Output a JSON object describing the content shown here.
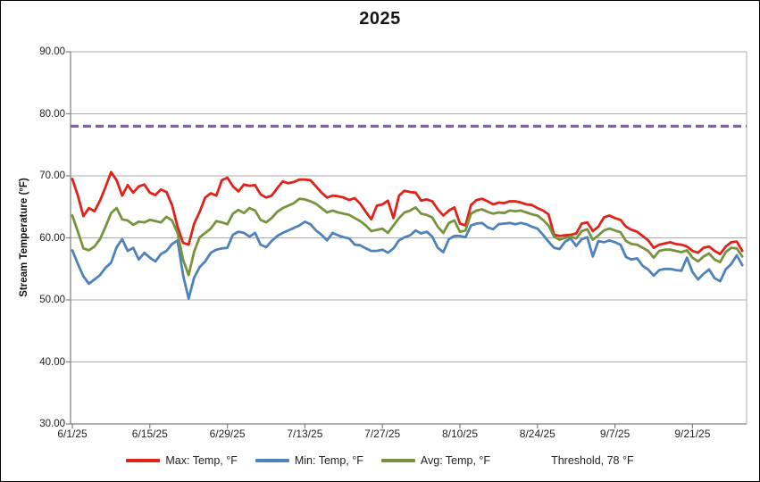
{
  "title": "2025",
  "y_axis": {
    "title": "Stream Temperature (°F)",
    "tick_labels": [
      "90.00",
      "80.00",
      "70.00",
      "60.00",
      "50.00",
      "40.00",
      "30.00"
    ]
  },
  "x_axis": {
    "ticks": [
      {
        "label": "6/1/25",
        "index": 0
      },
      {
        "label": "6/15/25",
        "index": 14
      },
      {
        "label": "6/29/25",
        "index": 28
      },
      {
        "label": "7/13/25",
        "index": 42
      },
      {
        "label": "7/27/25",
        "index": 56
      },
      {
        "label": "8/10/25",
        "index": 70
      },
      {
        "label": "8/24/25",
        "index": 84
      },
      {
        "label": "9/7/25",
        "index": 98
      },
      {
        "label": "9/21/25",
        "index": 112
      }
    ]
  },
  "legend": {
    "items": [
      {
        "label": "Max: Temp, °F",
        "color": "#E0231A",
        "dashed": false
      },
      {
        "label": "Min: Temp, °F",
        "color": "#4F81BD",
        "dashed": false
      },
      {
        "label": "Avg: Temp, °F",
        "color": "#77933C",
        "dashed": false
      },
      {
        "label": "Threshold, 78 °F",
        "color": "#8064A2",
        "dashed": true
      }
    ]
  },
  "colors": {
    "gridline": "#ABABAB",
    "axis": "#7F7F7F",
    "plot_border": "#ABABAB",
    "text": "#1F1F1F"
  },
  "chart_data": {
    "type": "line",
    "title": "2025",
    "xlabel": "",
    "ylabel": "Stream Temperature (°F)",
    "ylim": [
      30,
      90
    ],
    "grid": true,
    "legend_position": "bottom",
    "x": [
      "6/1/25",
      "6/2/25",
      "6/3/25",
      "6/4/25",
      "6/5/25",
      "6/6/25",
      "6/7/25",
      "6/8/25",
      "6/9/25",
      "6/10/25",
      "6/11/25",
      "6/12/25",
      "6/13/25",
      "6/14/25",
      "6/15/25",
      "6/16/25",
      "6/17/25",
      "6/18/25",
      "6/19/25",
      "6/20/25",
      "6/21/25",
      "6/22/25",
      "6/23/25",
      "6/24/25",
      "6/25/25",
      "6/26/25",
      "6/27/25",
      "6/28/25",
      "6/29/25",
      "6/30/25",
      "7/1/25",
      "7/2/25",
      "7/3/25",
      "7/4/25",
      "7/5/25",
      "7/6/25",
      "7/7/25",
      "7/8/25",
      "7/9/25",
      "7/10/25",
      "7/11/25",
      "7/12/25",
      "7/13/25",
      "7/14/25",
      "7/15/25",
      "7/16/25",
      "7/17/25",
      "7/18/25",
      "7/19/25",
      "7/20/25",
      "7/21/25",
      "7/22/25",
      "7/23/25",
      "7/24/25",
      "7/25/25",
      "7/26/25",
      "7/27/25",
      "7/28/25",
      "7/29/25",
      "7/30/25",
      "7/31/25",
      "8/1/25",
      "8/2/25",
      "8/3/25",
      "8/4/25",
      "8/5/25",
      "8/6/25",
      "8/7/25",
      "8/8/25",
      "8/9/25",
      "8/10/25",
      "8/11/25",
      "8/12/25",
      "8/13/25",
      "8/14/25",
      "8/15/25",
      "8/16/25",
      "8/17/25",
      "8/18/25",
      "8/19/25",
      "8/20/25",
      "8/21/25",
      "8/22/25",
      "8/23/25",
      "8/24/25",
      "8/25/25",
      "8/26/25",
      "8/27/25",
      "8/28/25",
      "8/29/25",
      "8/30/25",
      "8/31/25",
      "9/1/25",
      "9/2/25",
      "9/3/25",
      "9/4/25",
      "9/5/25",
      "9/6/25",
      "9/7/25",
      "9/8/25",
      "9/9/25",
      "9/10/25",
      "9/11/25",
      "9/12/25",
      "9/13/25",
      "9/14/25",
      "9/15/25",
      "9/16/25",
      "9/17/25",
      "9/18/25",
      "9/19/25",
      "9/20/25",
      "9/21/25",
      "9/22/25",
      "9/23/25",
      "9/24/25",
      "9/25/25",
      "9/26/25",
      "9/27/25",
      "9/28/25",
      "9/29/25",
      "9/30/25"
    ],
    "series": [
      {
        "name": "Max: Temp, °F",
        "color": "#E0231A",
        "values": [
          69.5,
          66.8,
          63.5,
          64.8,
          64.3,
          66.0,
          68.2,
          70.6,
          69.3,
          66.8,
          68.5,
          67.3,
          68.3,
          68.6,
          67.3,
          66.9,
          67.8,
          67.4,
          65.3,
          61.8,
          59.2,
          58.9,
          62.3,
          64.2,
          66.5,
          67.2,
          66.8,
          69.3,
          69.7,
          68.3,
          67.5,
          68.6,
          68.4,
          68.5,
          67.0,
          66.5,
          66.8,
          68.0,
          69.1,
          68.8,
          69.0,
          69.4,
          69.4,
          69.3,
          68.3,
          67.3,
          66.5,
          66.8,
          66.7,
          66.5,
          66.1,
          66.4,
          65.5,
          64.2,
          63.0,
          65.2,
          65.4,
          66.0,
          63.2,
          66.8,
          67.6,
          67.4,
          67.3,
          66.0,
          66.2,
          65.9,
          64.6,
          63.6,
          64.4,
          64.9,
          62.3,
          62.0,
          65.3,
          66.1,
          66.3,
          65.9,
          65.4,
          65.7,
          65.6,
          65.9,
          65.9,
          65.7,
          65.4,
          65.3,
          64.8,
          64.4,
          63.8,
          60.5,
          60.3,
          60.4,
          60.5,
          60.7,
          62.3,
          62.5,
          61.1,
          61.8,
          63.3,
          63.6,
          63.2,
          62.9,
          61.8,
          61.3,
          61.0,
          60.3,
          59.6,
          58.4,
          58.9,
          59.1,
          59.3,
          59.0,
          58.9,
          58.6,
          57.9,
          57.6,
          58.4,
          58.6,
          57.9,
          57.4,
          58.6,
          59.3,
          59.4,
          57.9
        ]
      },
      {
        "name": "Min: Temp, °F",
        "color": "#4F81BD",
        "values": [
          58.0,
          55.8,
          53.8,
          52.6,
          53.3,
          54.0,
          55.2,
          56.0,
          58.5,
          59.8,
          57.9,
          58.4,
          56.5,
          57.6,
          56.8,
          56.2,
          57.4,
          57.9,
          59.0,
          59.6,
          54.0,
          50.2,
          53.6,
          55.3,
          56.2,
          57.6,
          58.1,
          58.3,
          58.4,
          60.5,
          61.0,
          60.8,
          60.2,
          60.8,
          58.9,
          58.5,
          59.5,
          60.3,
          60.8,
          61.2,
          61.6,
          62.0,
          62.6,
          62.2,
          61.2,
          60.5,
          59.6,
          60.8,
          60.4,
          60.1,
          59.9,
          58.9,
          58.8,
          58.3,
          57.9,
          57.9,
          58.1,
          57.6,
          58.3,
          59.6,
          60.1,
          60.4,
          61.2,
          60.7,
          61.0,
          60.2,
          58.4,
          57.7,
          59.8,
          60.3,
          60.3,
          60.1,
          62.0,
          62.3,
          62.4,
          61.7,
          61.4,
          62.2,
          62.3,
          62.4,
          62.2,
          62.4,
          62.2,
          61.8,
          61.5,
          60.5,
          59.4,
          58.4,
          58.2,
          59.4,
          59.9,
          58.7,
          59.8,
          60.1,
          57.0,
          59.5,
          59.3,
          59.6,
          59.3,
          58.9,
          56.9,
          56.5,
          56.7,
          55.5,
          54.9,
          53.9,
          54.8,
          55.0,
          55.0,
          54.8,
          54.7,
          56.8,
          54.5,
          53.3,
          54.2,
          54.9,
          53.5,
          53.0,
          54.9,
          55.8,
          57.2,
          55.6
        ]
      },
      {
        "name": "Avg: Temp, °F",
        "color": "#77933C",
        "values": [
          63.6,
          61.0,
          58.3,
          58.0,
          58.6,
          59.8,
          61.8,
          64.0,
          64.8,
          63.0,
          62.8,
          62.1,
          62.6,
          62.5,
          62.9,
          62.7,
          62.5,
          63.4,
          62.8,
          60.8,
          56.5,
          54.0,
          57.8,
          60.1,
          60.8,
          61.5,
          62.7,
          62.5,
          62.2,
          63.9,
          64.5,
          64.0,
          64.8,
          64.4,
          62.9,
          62.5,
          63.2,
          64.2,
          64.8,
          65.2,
          65.6,
          66.3,
          66.2,
          65.9,
          65.5,
          64.8,
          64.1,
          64.4,
          64.1,
          63.9,
          63.7,
          63.2,
          62.7,
          62.0,
          61.1,
          61.3,
          61.5,
          60.8,
          62.0,
          63.2,
          64.1,
          64.4,
          64.9,
          63.9,
          63.7,
          63.3,
          61.8,
          60.8,
          62.4,
          62.8,
          61.0,
          61.2,
          63.9,
          64.4,
          64.6,
          64.2,
          63.9,
          64.1,
          64.0,
          64.4,
          64.3,
          64.4,
          64.1,
          63.8,
          63.6,
          62.9,
          62.0,
          60.2,
          59.7,
          60.0,
          60.2,
          59.9,
          61.1,
          61.4,
          59.7,
          60.4,
          61.2,
          61.5,
          61.2,
          60.9,
          59.5,
          59.0,
          58.9,
          58.4,
          57.9,
          56.8,
          57.9,
          58.1,
          58.1,
          57.9,
          57.7,
          58.0,
          56.8,
          56.2,
          57.0,
          57.5,
          56.5,
          56.1,
          57.7,
          58.4,
          58.3,
          57.0
        ]
      }
    ],
    "threshold": {
      "name": "Threshold, 78 °F",
      "value": 78,
      "color": "#8064A2",
      "style": "dashed"
    }
  }
}
